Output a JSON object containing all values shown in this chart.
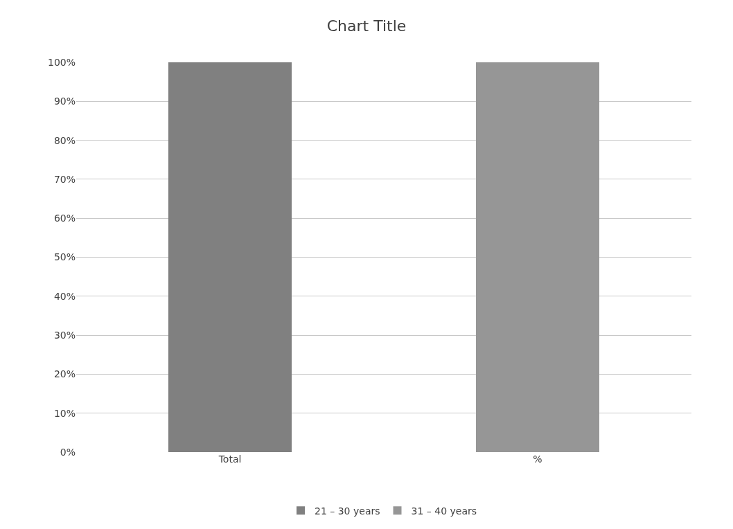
{
  "chart_data": {
    "type": "bar",
    "title": "Chart Title",
    "categories": [
      "Total",
      "%"
    ],
    "stacked": true,
    "series": [
      {
        "name": "21 – 30 years",
        "color": "#808080",
        "values": [
          100,
          0
        ]
      },
      {
        "name": "31 – 40 years",
        "color": "#969696",
        "values": [
          0,
          100
        ]
      }
    ],
    "ylim": [
      0,
      100
    ],
    "yticks": [
      {
        "value": 0,
        "label": "0%"
      },
      {
        "value": 10,
        "label": "10%"
      },
      {
        "value": 20,
        "label": "20%"
      },
      {
        "value": 30,
        "label": "30%"
      },
      {
        "value": 40,
        "label": "40%"
      },
      {
        "value": 50,
        "label": "50%"
      },
      {
        "value": 60,
        "label": "60%"
      },
      {
        "value": 70,
        "label": "70%"
      },
      {
        "value": 80,
        "label": "80%"
      },
      {
        "value": 90,
        "label": "90%"
      },
      {
        "value": 100,
        "label": "100%"
      }
    ],
    "grid": "y",
    "legend": "bottom"
  }
}
